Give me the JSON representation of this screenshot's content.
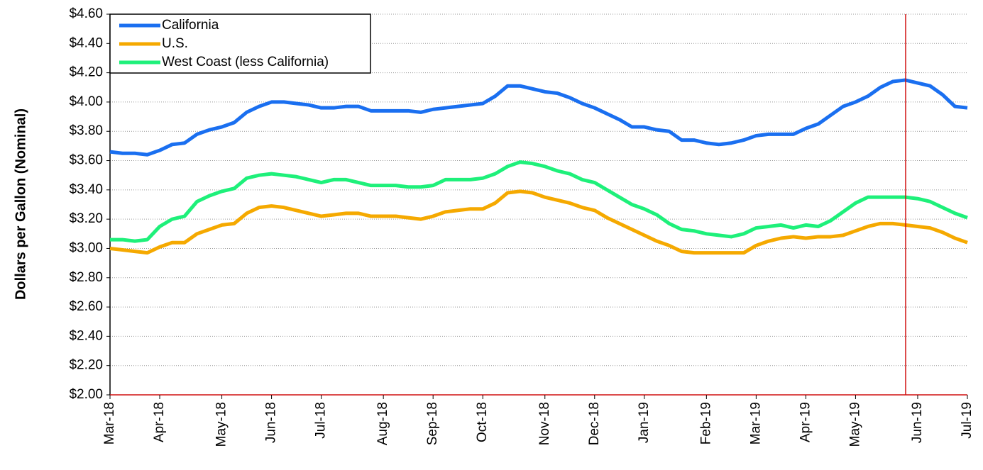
{
  "chart_data": {
    "type": "line",
    "y_label": "Dollars per Gallon (Nominal)",
    "categories": [
      "Mar-18",
      null,
      null,
      null,
      "Apr-18",
      null,
      null,
      null,
      null,
      "May-18",
      null,
      null,
      null,
      "Jun-18",
      null,
      null,
      null,
      "Jul-18",
      null,
      null,
      null,
      null,
      "Aug-18",
      null,
      null,
      null,
      "Sep-18",
      null,
      null,
      null,
      "Oct-18",
      null,
      null,
      null,
      null,
      "Nov-18",
      null,
      null,
      null,
      "Dec-18",
      null,
      null,
      null,
      "Jan-19",
      null,
      null,
      null,
      null,
      "Feb-19",
      null,
      null,
      null,
      "Mar-19",
      null,
      null,
      null,
      "Apr-19",
      null,
      null,
      null,
      "May-19",
      null,
      null,
      null,
      null,
      "Jun-19",
      null,
      null,
      null,
      "Jul-19"
    ],
    "series": [
      {
        "name": "California",
        "color": "#1a6ff0",
        "values": [
          3.66,
          3.65,
          3.65,
          3.64,
          3.67,
          3.71,
          3.72,
          3.78,
          3.81,
          3.83,
          3.86,
          3.93,
          3.97,
          4.0,
          4.0,
          3.99,
          3.98,
          3.96,
          3.96,
          3.97,
          3.97,
          3.94,
          3.94,
          3.94,
          3.94,
          3.93,
          3.95,
          3.96,
          3.97,
          3.98,
          3.99,
          4.04,
          4.11,
          4.11,
          4.09,
          4.07,
          4.06,
          4.03,
          3.99,
          3.96,
          3.92,
          3.88,
          3.83,
          3.83,
          3.81,
          3.8,
          3.74,
          3.74,
          3.72,
          3.71,
          3.72,
          3.74,
          3.77,
          3.78,
          3.78,
          3.78,
          3.82,
          3.85,
          3.91,
          3.97,
          4.0,
          4.04,
          4.1,
          4.14,
          4.15,
          4.13,
          4.11,
          4.05,
          3.97,
          3.96
        ]
      },
      {
        "name": "U.S.",
        "color": "#f5a900",
        "values": [
          3.0,
          2.99,
          2.98,
          2.97,
          3.01,
          3.04,
          3.04,
          3.1,
          3.13,
          3.16,
          3.17,
          3.24,
          3.28,
          3.29,
          3.28,
          3.26,
          3.24,
          3.22,
          3.23,
          3.24,
          3.24,
          3.22,
          3.22,
          3.22,
          3.21,
          3.2,
          3.22,
          3.25,
          3.26,
          3.27,
          3.27,
          3.31,
          3.38,
          3.39,
          3.38,
          3.35,
          3.33,
          3.31,
          3.28,
          3.26,
          3.21,
          3.17,
          3.13,
          3.09,
          3.05,
          3.02,
          2.98,
          2.97,
          2.97,
          2.97,
          2.97,
          2.97,
          3.02,
          3.05,
          3.07,
          3.08,
          3.07,
          3.08,
          3.08,
          3.09,
          3.12,
          3.15,
          3.17,
          3.17,
          3.16,
          3.15,
          3.14,
          3.11,
          3.07,
          3.04
        ]
      },
      {
        "name": "West Coast (less California)",
        "color": "#1ef07a",
        "values": [
          3.06,
          3.06,
          3.05,
          3.06,
          3.15,
          3.2,
          3.22,
          3.32,
          3.36,
          3.39,
          3.41,
          3.48,
          3.5,
          3.51,
          3.5,
          3.49,
          3.47,
          3.45,
          3.47,
          3.47,
          3.45,
          3.43,
          3.43,
          3.43,
          3.42,
          3.42,
          3.43,
          3.47,
          3.47,
          3.47,
          3.48,
          3.51,
          3.56,
          3.59,
          3.58,
          3.56,
          3.53,
          3.51,
          3.47,
          3.45,
          3.4,
          3.35,
          3.3,
          3.27,
          3.23,
          3.17,
          3.13,
          3.12,
          3.1,
          3.09,
          3.08,
          3.1,
          3.14,
          3.15,
          3.16,
          3.14,
          3.16,
          3.15,
          3.19,
          3.25,
          3.31,
          3.35,
          3.35,
          3.35,
          3.35,
          3.34,
          3.32,
          3.28,
          3.24,
          3.21
        ]
      }
    ],
    "ylim": [
      2.0,
      4.6
    ],
    "yticks": [
      {
        "value": 2.0,
        "label": "$2.00"
      },
      {
        "value": 2.2,
        "label": "$2.20"
      },
      {
        "value": 2.4,
        "label": "$2.40"
      },
      {
        "value": 2.6,
        "label": "$2.60"
      },
      {
        "value": 2.8,
        "label": "$2.80"
      },
      {
        "value": 3.0,
        "label": "$3.00"
      },
      {
        "value": 3.2,
        "label": "$3.20"
      },
      {
        "value": 3.4,
        "label": "$3.40"
      },
      {
        "value": 3.6,
        "label": "$3.60"
      },
      {
        "value": 3.8,
        "label": "$3.80"
      },
      {
        "value": 4.0,
        "label": "$4.00"
      },
      {
        "value": 4.2,
        "label": "$4.20"
      },
      {
        "value": 4.4,
        "label": "$4.40"
      },
      {
        "value": 4.6,
        "label": "$4.60"
      }
    ],
    "grid": true,
    "legend": "top-left"
  }
}
